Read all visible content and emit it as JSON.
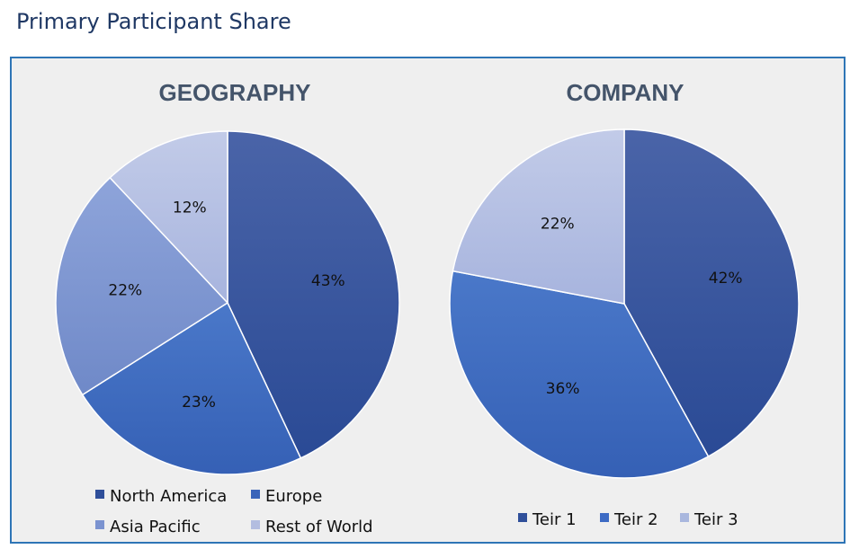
{
  "page_title": "Primary Participant Share",
  "chart_data": [
    {
      "type": "pie",
      "title": "GEOGRAPHY",
      "categories": [
        "North America",
        "Europe",
        "Asia Pacific",
        "Rest of World"
      ],
      "values": [
        43,
        23,
        22,
        12
      ],
      "labels": [
        "43%",
        "23%",
        "22%",
        "12%"
      ],
      "colors": [
        "#2f4f9a",
        "#3a64b9",
        "#7b93d0",
        "#b3bde0"
      ],
      "legend_position": "bottom"
    },
    {
      "type": "pie",
      "title": "COMPANY",
      "categories": [
        "Teir 1",
        "Teir 2",
        "Teir 3"
      ],
      "values": [
        42,
        36,
        22
      ],
      "labels": [
        "42%",
        "36%",
        "22%"
      ],
      "colors": [
        "#2f4f9a",
        "#3d6bc4",
        "#a9b7de"
      ],
      "legend_position": "bottom"
    }
  ]
}
